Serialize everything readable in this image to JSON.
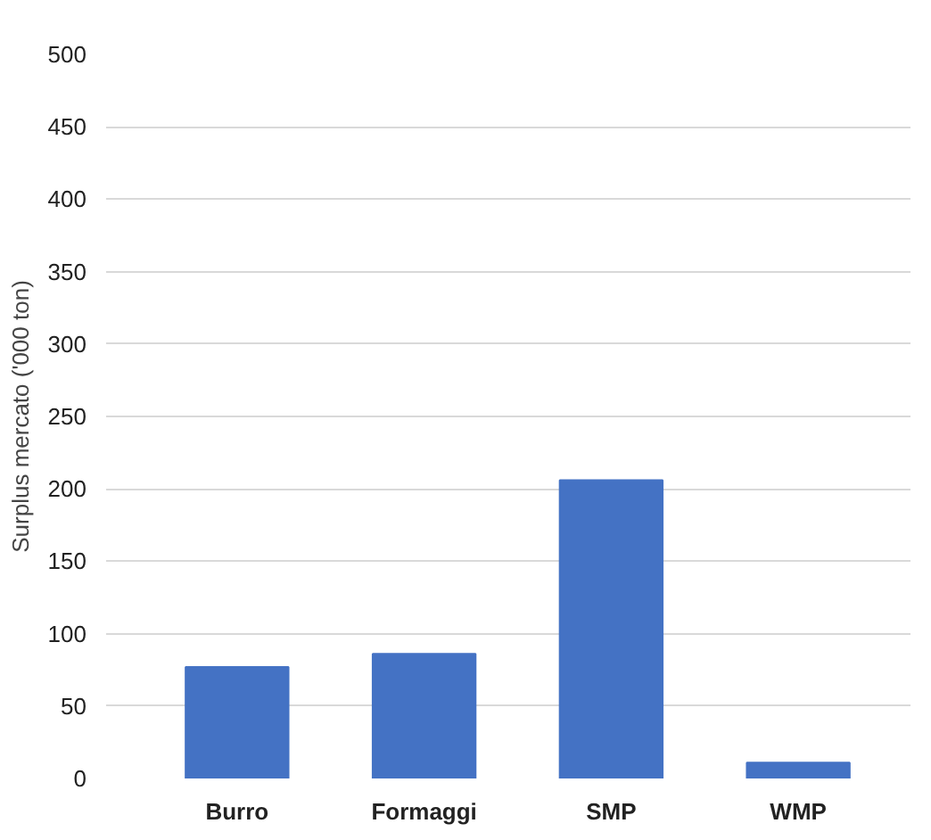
{
  "chart_data": {
    "type": "bar",
    "ylabel": "Surplus mercato ('000 ton)",
    "categories": [
      "Burro",
      "Formaggi",
      "SMP",
      "WMP"
    ],
    "values": [
      77,
      86,
      206,
      11
    ],
    "color": "#4472c4",
    "ylim": [
      0,
      500
    ],
    "yticks": [
      0,
      50,
      100,
      150,
      200,
      250,
      300,
      350,
      400,
      450,
      500
    ],
    "grid": "y"
  }
}
